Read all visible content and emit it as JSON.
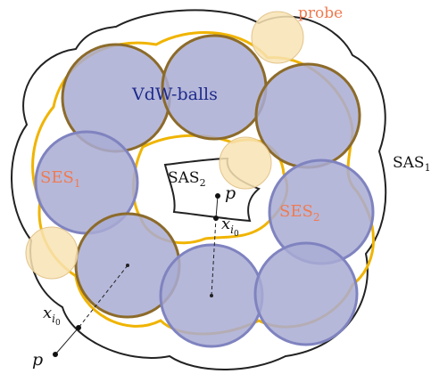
{
  "labels": {
    "probe": "probe",
    "vdw": "VdW-balls",
    "ses1": {
      "base": "SES",
      "sub": "1"
    },
    "ses2": {
      "base": "SES",
      "sub": "2"
    },
    "sas1": {
      "base": "SAS",
      "sub": "1"
    },
    "sas2": {
      "base": "SAS",
      "sub": "2"
    },
    "p_outer": "p",
    "p_inner": "p",
    "x_outer": {
      "base": "x",
      "sub": "i",
      "subsub": "0"
    },
    "x_inner": {
      "base": "x",
      "sub": "i",
      "subsub": "0"
    }
  },
  "colors": {
    "vdw_fill": "#a9acd3",
    "vdw_stroke_light": "#7f83bf",
    "vdw_stroke_dark": "#8c6b2a",
    "ses_stroke": "#f0b400",
    "sas_stroke": "#222222",
    "probe_fill": "#f8e3b4",
    "probe_stroke": "#e2c48c",
    "accent_text": "#f07a50",
    "vdw_text": "#1d2a8a"
  }
}
